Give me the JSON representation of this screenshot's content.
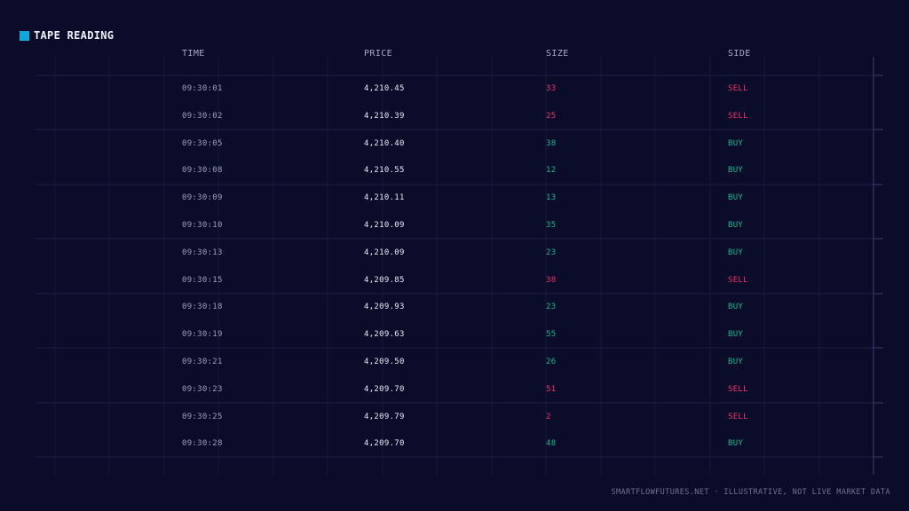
{
  "panel": {
    "title": "TAPE READING",
    "accent_color": "#12a6d8",
    "background": "#0b0c2a"
  },
  "colors": {
    "buy": "#18b991",
    "sell": "#f0336e"
  },
  "table": {
    "headers": {
      "time": "TIME",
      "price": "PRICE",
      "size": "SIZE",
      "side": "SIDE"
    },
    "rows": [
      {
        "time": "09:30:01",
        "price": "4,210.45",
        "size": "33",
        "side": "SELL"
      },
      {
        "time": "09:30:02",
        "price": "4,210.39",
        "size": "25",
        "side": "SELL"
      },
      {
        "time": "09:30:05",
        "price": "4,210.40",
        "size": "38",
        "side": "BUY"
      },
      {
        "time": "09:30:08",
        "price": "4,210.55",
        "size": "12",
        "side": "BUY"
      },
      {
        "time": "09:30:09",
        "price": "4,210.11",
        "size": "13",
        "side": "BUY"
      },
      {
        "time": "09:30:10",
        "price": "4,210.09",
        "size": "35",
        "side": "BUY"
      },
      {
        "time": "09:30:13",
        "price": "4,210.09",
        "size": "23",
        "side": "BUY"
      },
      {
        "time": "09:30:15",
        "price": "4,209.85",
        "size": "38",
        "side": "SELL"
      },
      {
        "time": "09:30:18",
        "price": "4,209.93",
        "size": "23",
        "side": "BUY"
      },
      {
        "time": "09:30:19",
        "price": "4,209.63",
        "size": "55",
        "side": "BUY"
      },
      {
        "time": "09:30:21",
        "price": "4,209.50",
        "size": "26",
        "side": "BUY"
      },
      {
        "time": "09:30:23",
        "price": "4,209.70",
        "size": "51",
        "side": "SELL"
      },
      {
        "time": "09:30:25",
        "price": "4,209.79",
        "size": "2",
        "side": "SELL"
      },
      {
        "time": "09:30:28",
        "price": "4,209.70",
        "size": "48",
        "side": "BUY"
      }
    ]
  },
  "footer": {
    "text": "SMARTFLOWFUTURES.NET · ILLUSTRATIVE, NOT LIVE MARKET DATA"
  }
}
